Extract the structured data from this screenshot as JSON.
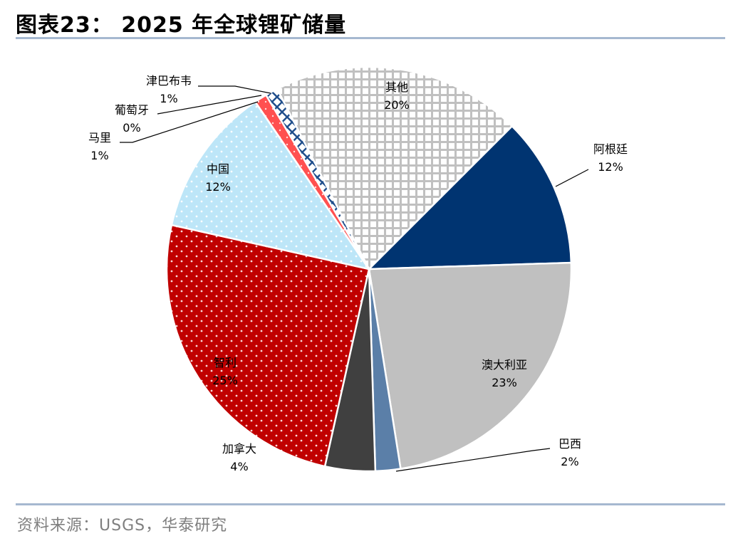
{
  "header": {
    "title": "图表23：  2025 年全球锂矿储量"
  },
  "footer": {
    "source": "资料来源：USGS，华泰研究"
  },
  "chart_data": {
    "type": "pie",
    "title": "",
    "start_angle_deg": -27,
    "direction": "clockwise",
    "slices": [
      {
        "label": "其他",
        "value": 20,
        "display": "20%",
        "color": "#c0c0c0",
        "pattern": "grid"
      },
      {
        "label": "阿根廷",
        "value": 12,
        "display": "12%",
        "color": "#003471",
        "pattern": "solid"
      },
      {
        "label": "澳大利亚",
        "value": 23,
        "display": "23%",
        "color": "#c0c0c0",
        "pattern": "solid"
      },
      {
        "label": "巴西",
        "value": 2,
        "display": "2%",
        "color": "#5b7fa8",
        "pattern": "solid"
      },
      {
        "label": "加拿大",
        "value": 4,
        "display": "4%",
        "color": "#404040",
        "pattern": "solid"
      },
      {
        "label": "智利",
        "value": 25,
        "display": "25%",
        "color": "#c00000",
        "pattern": "dots"
      },
      {
        "label": "中国",
        "value": 12,
        "display": "12%",
        "color": "#bde6f8",
        "pattern": "dots"
      },
      {
        "label": "马里",
        "value": 1,
        "display": "1%",
        "color": "#ff5050",
        "pattern": "dots"
      },
      {
        "label": "葡萄牙",
        "value": 0,
        "display": "0%",
        "color": "#9fb4cc",
        "pattern": "solid"
      },
      {
        "label": "津巴布韦",
        "value": 1,
        "display": "1%",
        "color": "#1f4e8c",
        "pattern": "crosshatch"
      }
    ]
  }
}
